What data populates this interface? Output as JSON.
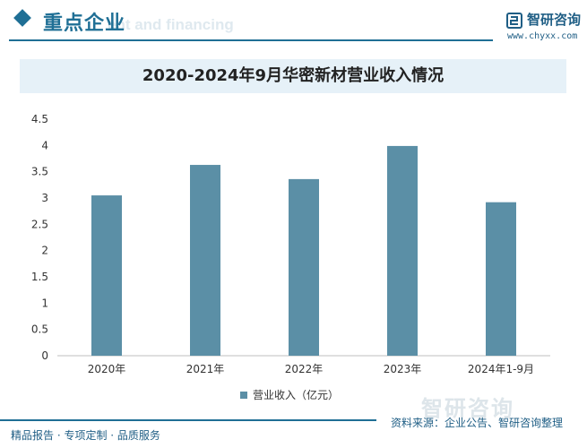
{
  "header": {
    "section_title": "重点企业",
    "ghost_text": "ent and financing",
    "brand_name": "智研咨询",
    "brand_url": "www.chyxx.com"
  },
  "chart_data": {
    "type": "bar",
    "title": "2020-2024年9月华密新材营业收入情况",
    "categories": [
      "2020年",
      "2021年",
      "2022年",
      "2023年",
      "2024年1-9月"
    ],
    "series": [
      {
        "name": "营业收入（亿元）",
        "values": [
          3.05,
          3.63,
          3.36,
          3.99,
          2.92
        ],
        "color": "#5b8fa6"
      }
    ],
    "ylim": [
      0,
      4.5
    ],
    "yticks": [
      "0",
      "0.5",
      "1",
      "1.5",
      "2",
      "2.5",
      "3",
      "3.5",
      "4",
      "4.5"
    ],
    "grid": false,
    "legend": "bottom"
  },
  "footer": {
    "left_text": "精品报告 · 专项定制 · 品质服务",
    "source_text": "资料来源：企业公告、智研咨询整理",
    "watermark_brand": "智研咨询"
  }
}
